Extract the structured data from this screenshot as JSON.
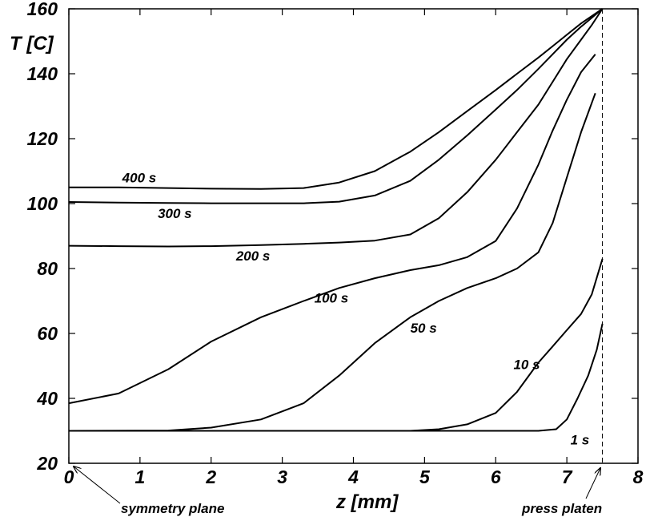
{
  "chart_data": {
    "type": "line",
    "title": "",
    "xlabel": "z [mm]",
    "ylabel": "T [C]",
    "xlim": [
      0,
      8
    ],
    "ylim": [
      20,
      160
    ],
    "xticks": [
      "0",
      "1",
      "2",
      "3",
      "4",
      "5",
      "6",
      "7",
      "8"
    ],
    "yticks": [
      "20",
      "40",
      "60",
      "80",
      "100",
      "120",
      "140",
      "160"
    ],
    "grid": false,
    "legend": "none",
    "series": [
      {
        "name": "400 s",
        "points": [
          [
            0,
            105
          ],
          [
            0.7,
            105
          ],
          [
            1.4,
            104.8
          ],
          [
            2.0,
            104.6
          ],
          [
            2.7,
            104.5
          ],
          [
            3.3,
            104.8
          ],
          [
            3.8,
            106.5
          ],
          [
            4.3,
            110
          ],
          [
            4.8,
            116
          ],
          [
            5.2,
            122
          ],
          [
            5.6,
            128.5
          ],
          [
            6.0,
            135
          ],
          [
            6.3,
            140
          ],
          [
            6.6,
            145
          ],
          [
            6.8,
            148.5
          ],
          [
            7.0,
            152
          ],
          [
            7.2,
            155.5
          ],
          [
            7.5,
            160
          ]
        ]
      },
      {
        "name": "300 s",
        "points": [
          [
            0,
            100.5
          ],
          [
            0.7,
            100.3
          ],
          [
            1.4,
            100.2
          ],
          [
            2.0,
            100.1
          ],
          [
            2.7,
            100.1
          ],
          [
            3.3,
            100.1
          ],
          [
            3.8,
            100.6
          ],
          [
            4.3,
            102.5
          ],
          [
            4.8,
            107
          ],
          [
            5.2,
            113.5
          ],
          [
            5.6,
            121
          ],
          [
            6.0,
            129
          ],
          [
            6.3,
            135
          ],
          [
            6.6,
            141.5
          ],
          [
            6.8,
            146
          ],
          [
            7.0,
            150.5
          ],
          [
            7.2,
            154.5
          ],
          [
            7.5,
            160
          ]
        ]
      },
      {
        "name": "200 s",
        "points": [
          [
            0,
            87
          ],
          [
            0.7,
            86.9
          ],
          [
            1.4,
            86.8
          ],
          [
            2.0,
            86.9
          ],
          [
            2.7,
            87.2
          ],
          [
            3.3,
            87.6
          ],
          [
            3.8,
            88
          ],
          [
            4.3,
            88.6
          ],
          [
            4.8,
            90.5
          ],
          [
            5.2,
            95.5
          ],
          [
            5.6,
            103.5
          ],
          [
            6.0,
            113.5
          ],
          [
            6.3,
            122
          ],
          [
            6.6,
            130.5
          ],
          [
            6.8,
            137.5
          ],
          [
            7.0,
            144.5
          ],
          [
            7.2,
            150.5
          ],
          [
            7.35,
            155
          ],
          [
            7.5,
            160
          ]
        ]
      },
      {
        "name": "100 s",
        "points": [
          [
            0,
            38.5
          ],
          [
            0.7,
            41.5
          ],
          [
            1.4,
            49
          ],
          [
            2.0,
            57.5
          ],
          [
            2.7,
            65
          ],
          [
            3.3,
            70
          ],
          [
            3.8,
            74
          ],
          [
            4.3,
            77
          ],
          [
            4.8,
            79.5
          ],
          [
            5.2,
            81
          ],
          [
            5.6,
            83.5
          ],
          [
            6.0,
            88.5
          ],
          [
            6.3,
            98.5
          ],
          [
            6.6,
            112
          ],
          [
            6.8,
            122.5
          ],
          [
            7.0,
            132
          ],
          [
            7.2,
            140.5
          ],
          [
            7.4,
            146
          ]
        ]
      },
      {
        "name": "50 s",
        "points": [
          [
            0,
            30
          ],
          [
            1.4,
            30.1
          ],
          [
            2.0,
            31
          ],
          [
            2.7,
            33.5
          ],
          [
            3.3,
            38.5
          ],
          [
            3.8,
            47
          ],
          [
            4.3,
            57
          ],
          [
            4.8,
            65
          ],
          [
            5.2,
            70
          ],
          [
            5.6,
            74
          ],
          [
            6.0,
            77
          ],
          [
            6.3,
            80
          ],
          [
            6.6,
            85
          ],
          [
            6.8,
            94
          ],
          [
            7.0,
            108
          ],
          [
            7.2,
            122
          ],
          [
            7.4,
            134
          ]
        ]
      },
      {
        "name": "10 s",
        "points": [
          [
            0,
            30
          ],
          [
            4.8,
            30
          ],
          [
            5.2,
            30.5
          ],
          [
            5.6,
            32
          ],
          [
            6.0,
            35.5
          ],
          [
            6.3,
            42
          ],
          [
            6.6,
            51
          ],
          [
            6.8,
            56
          ],
          [
            7.0,
            61
          ],
          [
            7.2,
            66
          ],
          [
            7.35,
            72
          ],
          [
            7.5,
            83
          ]
        ]
      },
      {
        "name": "1 s",
        "points": [
          [
            0,
            30
          ],
          [
            6.6,
            30
          ],
          [
            6.85,
            30.5
          ],
          [
            7.0,
            33.5
          ],
          [
            7.15,
            40
          ],
          [
            7.3,
            47
          ],
          [
            7.42,
            55
          ],
          [
            7.5,
            63
          ]
        ]
      }
    ],
    "platen_line": {
      "x": 7.5
    },
    "series_labels": [
      {
        "text": "400 s",
        "x": 0.75,
        "y": 106.5
      },
      {
        "text": "300 s",
        "x": 1.25,
        "y": 95.5
      },
      {
        "text": "200 s",
        "x": 2.35,
        "y": 82.5
      },
      {
        "text": "100 s",
        "x": 3.45,
        "y": 69.5
      },
      {
        "text": "50 s",
        "x": 4.8,
        "y": 60.2
      },
      {
        "text": "10 s",
        "x": 6.25,
        "y": 49
      },
      {
        "text": "1 s",
        "x": 7.05,
        "y": 25.8
      }
    ],
    "annotations": [
      {
        "text": "symmetry plane",
        "arrow_to": [
          0,
          20
        ]
      },
      {
        "text": "press platen",
        "arrow_to": [
          7.5,
          20
        ]
      }
    ]
  }
}
